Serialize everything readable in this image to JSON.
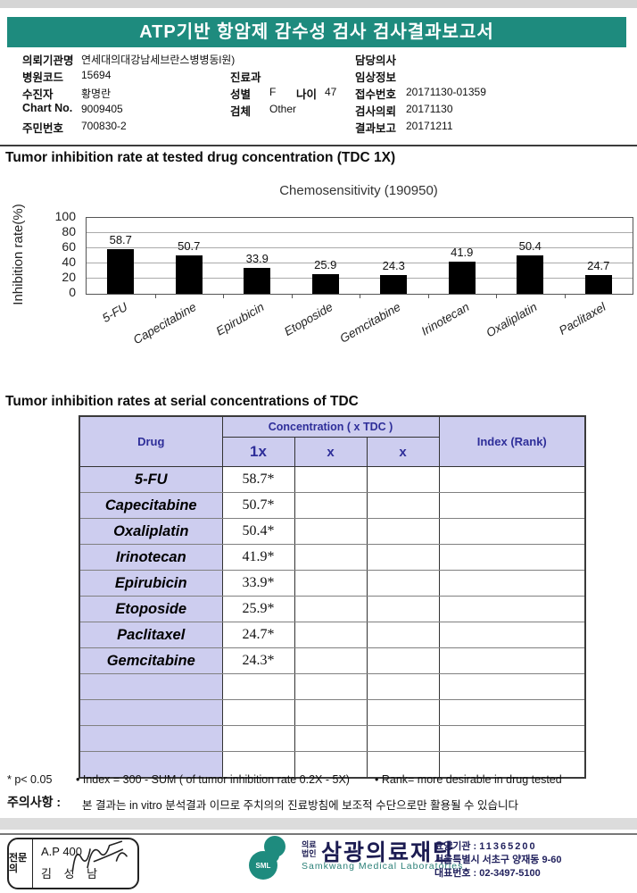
{
  "header": {
    "title": "ATP기반 항암제 감수성 검사 검사결과보고서"
  },
  "patient": {
    "left": [
      {
        "label": "의뢰기관명",
        "value": "연세대의대강남세브란스병병동l원)"
      },
      {
        "label": "병원코드",
        "value": "15694"
      },
      {
        "label": "수진자",
        "value": "황명란"
      },
      {
        "label": "Chart No.",
        "value": "9009405"
      },
      {
        "label": "주민번호",
        "value": "700830-2"
      }
    ],
    "mid": {
      "dept_label": "진료과",
      "dept_value": "",
      "sex_label": "성별",
      "sex_value": "F",
      "age_label": "나이",
      "age_value": "47",
      "specimen_label": "검체",
      "specimen_value": "Other"
    },
    "right": [
      {
        "label": "담당의사",
        "value": ""
      },
      {
        "label": "임상정보",
        "value": ""
      },
      {
        "label": "접수번호",
        "value": "20171130-01359"
      },
      {
        "label": "검사의뢰",
        "value": "20171130"
      },
      {
        "label": "결과보고",
        "value": "20171211"
      }
    ]
  },
  "section1": {
    "title": "Tumor inhibition rate at tested drug concentration (TDC 1X)"
  },
  "chart_data": {
    "type": "bar",
    "title": "Chemosensitivity (190950)",
    "ylabel": "Inhibition rate(%)",
    "xlabel": "",
    "categories": [
      "5-FU",
      "Capecitabine",
      "Epirubicin",
      "Etoposide",
      "Gemcitabine",
      "Irinotecan",
      "Oxaliplatin",
      "Paclitaxel"
    ],
    "values": [
      58.7,
      50.7,
      33.9,
      25.9,
      24.3,
      41.9,
      50.4,
      24.7
    ],
    "ylim": [
      0,
      100
    ],
    "yticks": [
      0,
      20,
      40,
      60,
      80,
      100
    ],
    "grid": true,
    "legend": false,
    "bar_color": "#000000"
  },
  "section2": {
    "title": "Tumor inhibition rates at serial concentrations of TDC"
  },
  "table": {
    "col_drug": "Drug",
    "col_conc": "Concentration ( x TDC )",
    "col_index": "Index (Rank)",
    "sub_cols": [
      "1x",
      "x",
      "x"
    ],
    "rows": [
      {
        "drug": "5-FU",
        "c1": "58.7*",
        "c2": "",
        "c3": "",
        "index": ""
      },
      {
        "drug": "Capecitabine",
        "c1": "50.7*",
        "c2": "",
        "c3": "",
        "index": ""
      },
      {
        "drug": "Oxaliplatin",
        "c1": "50.4*",
        "c2": "",
        "c3": "",
        "index": ""
      },
      {
        "drug": "Irinotecan",
        "c1": "41.9*",
        "c2": "",
        "c3": "",
        "index": ""
      },
      {
        "drug": "Epirubicin",
        "c1": "33.9*",
        "c2": "",
        "c3": "",
        "index": ""
      },
      {
        "drug": "Etoposide",
        "c1": "25.9*",
        "c2": "",
        "c3": "",
        "index": ""
      },
      {
        "drug": "Paclitaxel",
        "c1": "24.7*",
        "c2": "",
        "c3": "",
        "index": ""
      },
      {
        "drug": "Gemcitabine",
        "c1": "24.3*",
        "c2": "",
        "c3": "",
        "index": ""
      },
      {
        "drug": "",
        "c1": "",
        "c2": "",
        "c3": "",
        "index": ""
      },
      {
        "drug": "",
        "c1": "",
        "c2": "",
        "c3": "",
        "index": ""
      },
      {
        "drug": "",
        "c1": "",
        "c2": "",
        "c3": "",
        "index": ""
      },
      {
        "drug": "",
        "c1": "",
        "c2": "",
        "c3": "",
        "index": ""
      }
    ]
  },
  "footnotes": {
    "f1": "* p< 0.05",
    "f2": "• Index = 300 - SUM ( of tumor inhibition rate 0.2X  -  5X)",
    "f3": "• Rank= more desirable in drug tested"
  },
  "caution": {
    "label": "주의사항 :",
    "text": "본 결과는 in vitro 분석결과 이므로 주치의의 진료방침에 보조적 수단으로만 활용될 수 있습니다"
  },
  "footer": {
    "sign_side": "전문의",
    "sign_line1": "A.P 400",
    "sign_line2": "김 성 남",
    "logo_text": "SML",
    "org_small1": "의료",
    "org_small2": "법인",
    "org_name": "삼광의료재단",
    "org_en": "Samkwang Medical Laboratories",
    "info1_label": "요양기관 : ",
    "info1_value": "11365200",
    "info2": "서울특별시 서초구 양재동 9-60",
    "info3_label": "대표번호 : ",
    "info3_value": "02-3497-5100"
  },
  "colors": {
    "header_bg": "#1e8b7e",
    "table_header_bg": "#cdcdef",
    "navy": "#2e2e99",
    "bar": "#000000",
    "teal_logo": "#1e8b7e"
  }
}
